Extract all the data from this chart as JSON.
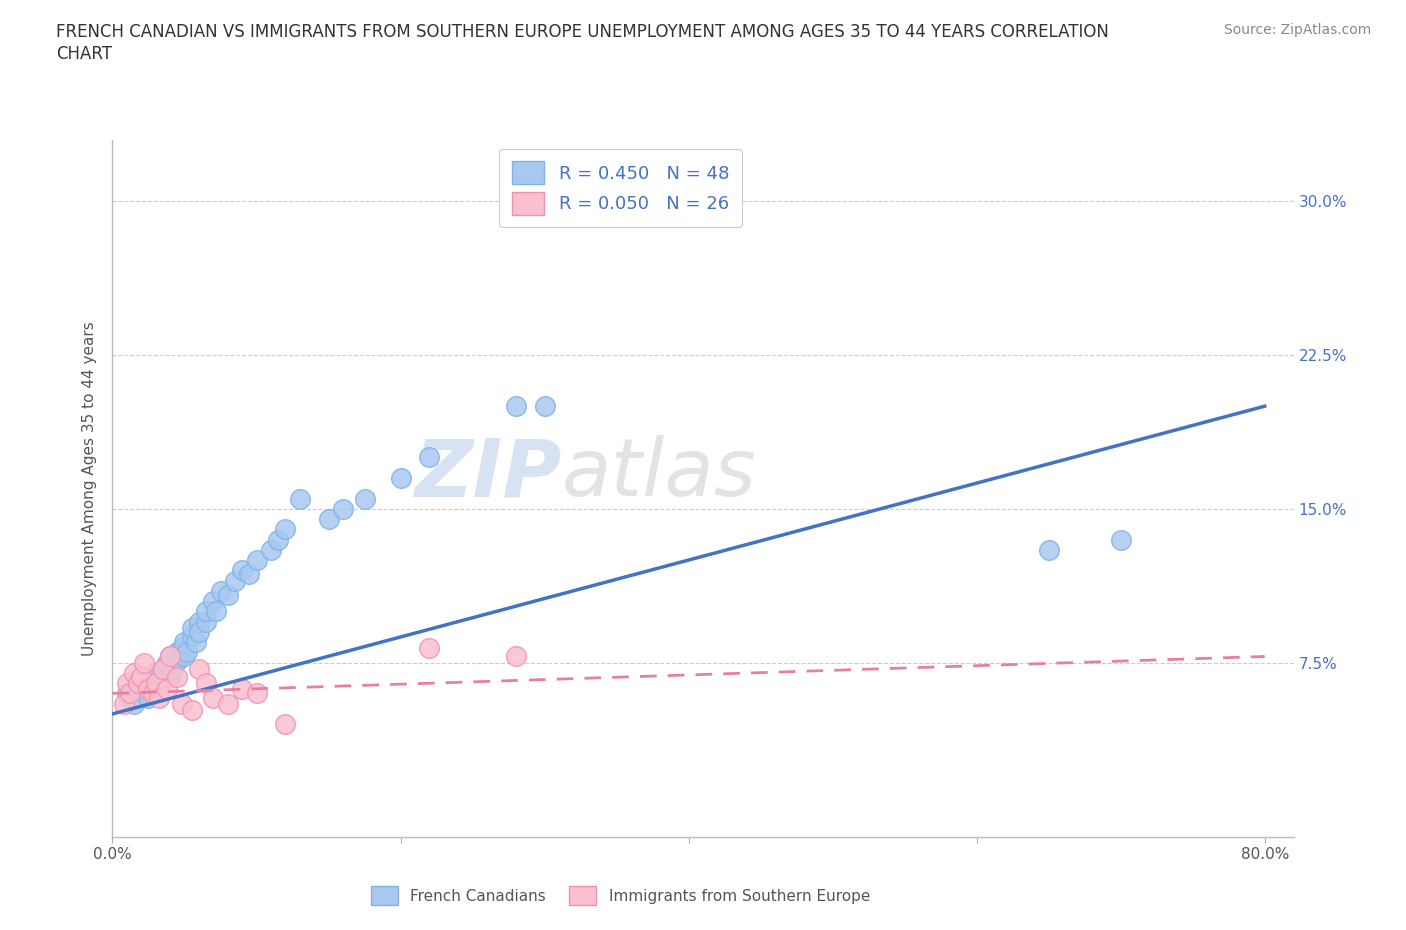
{
  "title_line1": "FRENCH CANADIAN VS IMMIGRANTS FROM SOUTHERN EUROPE UNEMPLOYMENT AMONG AGES 35 TO 44 YEARS CORRELATION",
  "title_line2": "CHART",
  "source": "Source: ZipAtlas.com",
  "ylabel": "Unemployment Among Ages 35 to 44 years",
  "xlim": [
    0.0,
    0.82
  ],
  "ylim": [
    -0.01,
    0.33
  ],
  "blue_color": "#A8C8F0",
  "blue_edge_color": "#7EB3E8",
  "pink_color": "#F9C0CE",
  "pink_edge_color": "#F48FB1",
  "blue_line_color": "#4472C4",
  "pink_line_color": "#E87FA0",
  "legend_label1": "R = 0.450   N = 48",
  "legend_label2": "R = 0.050   N = 26",
  "group1_label": "French Canadians",
  "group2_label": "Immigrants from Southern Europe",
  "watermark_blue": "ZIP",
  "watermark_gray": "atlas",
  "grid_color": "#CCCCCC",
  "background_color": "#FFFFFF",
  "blue_scatter_x": [
    0.01,
    0.015,
    0.02,
    0.022,
    0.025,
    0.025,
    0.03,
    0.03,
    0.032,
    0.035,
    0.038,
    0.04,
    0.04,
    0.042,
    0.045,
    0.045,
    0.048,
    0.05,
    0.05,
    0.052,
    0.055,
    0.055,
    0.058,
    0.06,
    0.06,
    0.065,
    0.065,
    0.07,
    0.072,
    0.075,
    0.08,
    0.085,
    0.09,
    0.095,
    0.1,
    0.11,
    0.115,
    0.12,
    0.13,
    0.15,
    0.16,
    0.175,
    0.2,
    0.22,
    0.28,
    0.3,
    0.65,
    0.7
  ],
  "blue_scatter_y": [
    0.06,
    0.055,
    0.065,
    0.068,
    0.06,
    0.058,
    0.063,
    0.07,
    0.065,
    0.072,
    0.075,
    0.068,
    0.078,
    0.072,
    0.08,
    0.076,
    0.082,
    0.078,
    0.085,
    0.08,
    0.088,
    0.092,
    0.085,
    0.095,
    0.09,
    0.095,
    0.1,
    0.105,
    0.1,
    0.11,
    0.108,
    0.115,
    0.12,
    0.118,
    0.125,
    0.13,
    0.135,
    0.14,
    0.155,
    0.145,
    0.15,
    0.155,
    0.165,
    0.175,
    0.2,
    0.2,
    0.13,
    0.135
  ],
  "pink_scatter_x": [
    0.008,
    0.01,
    0.012,
    0.015,
    0.018,
    0.02,
    0.022,
    0.025,
    0.028,
    0.03,
    0.032,
    0.035,
    0.038,
    0.04,
    0.045,
    0.048,
    0.055,
    0.06,
    0.065,
    0.07,
    0.08,
    0.09,
    0.1,
    0.12,
    0.22,
    0.28
  ],
  "pink_scatter_y": [
    0.055,
    0.065,
    0.06,
    0.07,
    0.065,
    0.068,
    0.075,
    0.062,
    0.06,
    0.065,
    0.058,
    0.072,
    0.062,
    0.078,
    0.068,
    0.055,
    0.052,
    0.072,
    0.065,
    0.058,
    0.055,
    0.062,
    0.06,
    0.045,
    0.082,
    0.078
  ],
  "blue_trendline_x0": 0.0,
  "blue_trendline_y0": 0.05,
  "blue_trendline_x1": 0.8,
  "blue_trendline_y1": 0.2,
  "pink_trendline_x0": 0.0,
  "pink_trendline_y0": 0.06,
  "pink_trendline_x1": 0.8,
  "pink_trendline_y1": 0.078,
  "y_tick_positions": [
    0.0,
    0.075,
    0.15,
    0.225,
    0.3
  ],
  "y_tick_labels": [
    "",
    "7.5%",
    "15.0%",
    "22.5%",
    "30.0%"
  ],
  "x_tick_positions": [
    0.0,
    0.2,
    0.4,
    0.6,
    0.8
  ],
  "x_tick_labels": [
    "0.0%",
    "",
    "",
    "",
    "80.0%"
  ]
}
